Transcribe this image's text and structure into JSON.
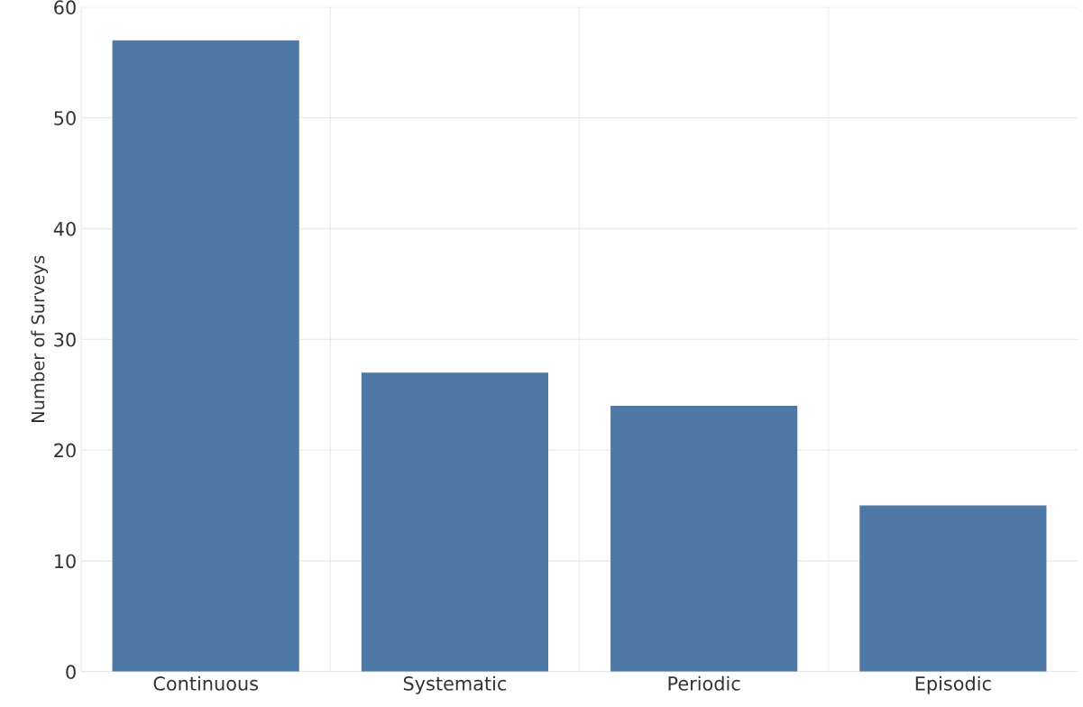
{
  "chart_data": {
    "type": "bar",
    "ylabel": "Number of Surveys",
    "categories": [
      "Continuous",
      "Systematic",
      "Periodic",
      "Episodic"
    ],
    "values": [
      57,
      27,
      24,
      15
    ],
    "color": "#4e79a7",
    "ylim": [
      0,
      60
    ],
    "yticks": [
      0,
      10,
      20,
      30,
      40,
      50,
      60
    ],
    "grid": "y"
  }
}
